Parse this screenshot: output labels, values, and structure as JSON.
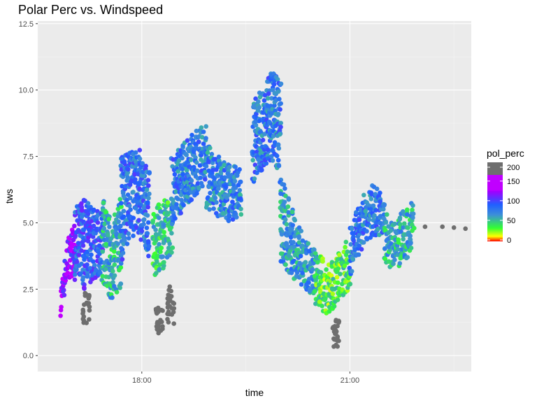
{
  "chart_data": {
    "type": "scatter",
    "title": "Polar Perc vs. Windspeed",
    "xlabel": "time",
    "ylabel": "tws",
    "x_ticks": [
      "18:00",
      "21:00"
    ],
    "y_ticks": [
      "0.0",
      "2.5",
      "5.0",
      "7.5",
      "10.0",
      "12.5"
    ],
    "xlim": [
      "16:30",
      "22:45"
    ],
    "ylim": [
      -0.6,
      12.6
    ],
    "grid": true,
    "legend": {
      "title": "pol_perc",
      "position": "right",
      "breaks": [
        "200",
        "150",
        "100",
        "50",
        "0"
      ],
      "colors": [
        {
          "value": 0,
          "color": "#ff0000"
        },
        {
          "value": 15,
          "color": "#ffff00"
        },
        {
          "value": 40,
          "color": "#33ff33"
        },
        {
          "value": 80,
          "color": "#3d8fd8"
        },
        {
          "value": 110,
          "color": "#2060ff"
        },
        {
          "value": 150,
          "color": "#a000ff"
        },
        {
          "value": 155,
          "color": "#c000ff"
        }
      ],
      "na_color": "#6e6e6e"
    },
    "series": [
      {
        "segments": [
          {
            "x": [
              "16:50",
              "16:56",
              "17:02"
            ],
            "lo": [
              1.5,
              3.0,
              2.8
            ],
            "hi": [
              2.5,
              4.5,
              5.0
            ],
            "pol": 145
          },
          {
            "x": [
              "17:02",
              "17:10",
              "17:18",
              "17:26"
            ],
            "lo": [
              3.0,
              2.5,
              2.8,
              3.2
            ],
            "hi": [
              5.5,
              6.0,
              5.5,
              5.5
            ],
            "pol": 110
          },
          {
            "x": [
              "17:26",
              "17:34",
              "17:42"
            ],
            "lo": [
              2.8,
              2.0,
              2.6
            ],
            "hi": [
              6.0,
              5.0,
              6.0
            ],
            "pol": 70
          },
          {
            "x": [
              "17:42",
              "17:50",
              "17:58",
              "18:06"
            ],
            "lo": [
              3.5,
              4.5,
              4.5,
              3.5
            ],
            "hi": [
              7.5,
              7.7,
              7.8,
              7.0
            ],
            "pol": 100
          },
          {
            "x": [
              "18:10",
              "18:18",
              "18:26"
            ],
            "lo": [
              3.0,
              3.2,
              3.8
            ],
            "hi": [
              5.5,
              5.8,
              6.0
            ],
            "pol": 60
          },
          {
            "x": [
              "18:26",
              "18:36",
              "18:46",
              "18:56"
            ],
            "lo": [
              4.8,
              5.5,
              6.0,
              6.5
            ],
            "hi": [
              7.5,
              8.0,
              8.5,
              8.8
            ],
            "pol": 95
          },
          {
            "x": [
              "18:56",
              "19:06",
              "19:16",
              "19:26"
            ],
            "lo": [
              5.5,
              5.2,
              5.0,
              5.3
            ],
            "hi": [
              8.0,
              7.5,
              7.3,
              7.2
            ],
            "pol": 90
          },
          {
            "x": [
              "19:36",
              "19:44",
              "19:52",
              "20:00"
            ],
            "lo": [
              6.5,
              7.0,
              7.2,
              7.0
            ],
            "hi": [
              9.5,
              10.0,
              10.7,
              10.3
            ],
            "pol": 95
          },
          {
            "x": [
              "20:00",
              "20:10",
              "20:20",
              "20:30"
            ],
            "lo": [
              3.5,
              3.0,
              2.5,
              2.2
            ],
            "hi": [
              7.0,
              5.5,
              4.5,
              4.0
            ],
            "pol": 80
          },
          {
            "x": [
              "20:30",
              "20:40",
              "20:50",
              "21:00"
            ],
            "lo": [
              1.8,
              1.5,
              2.0,
              2.5
            ],
            "hi": [
              4.0,
              3.5,
              3.8,
              4.5
            ],
            "pol": 45
          },
          {
            "x": [
              "21:00",
              "21:10",
              "21:20",
              "21:30"
            ],
            "lo": [
              3.0,
              4.0,
              4.5,
              4.5
            ],
            "hi": [
              4.8,
              6.0,
              6.5,
              6.0
            ],
            "pol": 95
          },
          {
            "x": [
              "21:30",
              "21:40",
              "21:48",
              "21:55"
            ],
            "lo": [
              3.5,
              3.2,
              3.5,
              4.0
            ],
            "hi": [
              5.5,
              5.0,
              5.5,
              5.8
            ],
            "pol": 70
          }
        ]
      },
      {
        "name": "gray",
        "points": [
          {
            "x": "18:15",
            "y_lo": 0.8,
            "y_hi": 1.8
          },
          {
            "x": "18:25",
            "y_lo": 1.2,
            "y_hi": 2.6
          },
          {
            "x": "17:12",
            "y_lo": 1.2,
            "y_hi": 2.4
          },
          {
            "x": "20:48",
            "y_lo": 0.3,
            "y_hi": 1.5
          }
        ]
      },
      {
        "name": "tail",
        "x": [
          "22:05",
          "22:20",
          "22:30",
          "22:40"
        ],
        "y": [
          4.85,
          4.85,
          4.82,
          4.78
        ]
      }
    ]
  }
}
